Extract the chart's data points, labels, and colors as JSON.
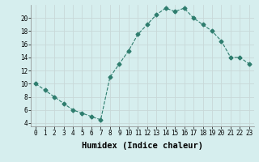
{
  "xlabel": "Humidex (Indice chaleur)",
  "x": [
    0,
    1,
    2,
    3,
    4,
    5,
    6,
    7,
    8,
    9,
    10,
    11,
    12,
    13,
    14,
    15,
    16,
    17,
    18,
    19,
    20,
    21,
    22,
    23
  ],
  "y": [
    10,
    9,
    8,
    7,
    6,
    5.5,
    5,
    4.5,
    11,
    13,
    15,
    17.5,
    19,
    20.5,
    21.5,
    21,
    21.5,
    20,
    19,
    18,
    16.5,
    14,
    14,
    13
  ],
  "line_color": "#2e7d6e",
  "marker": "D",
  "marker_size": 2.5,
  "background_color": "#d6eeee",
  "grid_color": "#c8d8d8",
  "xlim": [
    -0.5,
    23.5
  ],
  "ylim": [
    3.5,
    22
  ],
  "yticks": [
    4,
    6,
    8,
    10,
    12,
    14,
    16,
    18,
    20
  ],
  "xticks": [
    0,
    1,
    2,
    3,
    4,
    5,
    6,
    7,
    8,
    9,
    10,
    11,
    12,
    13,
    14,
    15,
    16,
    17,
    18,
    19,
    20,
    21,
    22,
    23
  ],
  "xtick_labels": [
    "0",
    "1",
    "2",
    "3",
    "4",
    "5",
    "6",
    "7",
    "8",
    "9",
    "10",
    "11",
    "12",
    "13",
    "14",
    "15",
    "16",
    "17",
    "18",
    "19",
    "20",
    "21",
    "22",
    "23"
  ],
  "tick_fontsize": 5.5,
  "xlabel_fontsize": 7.5,
  "spine_color": "#888888"
}
